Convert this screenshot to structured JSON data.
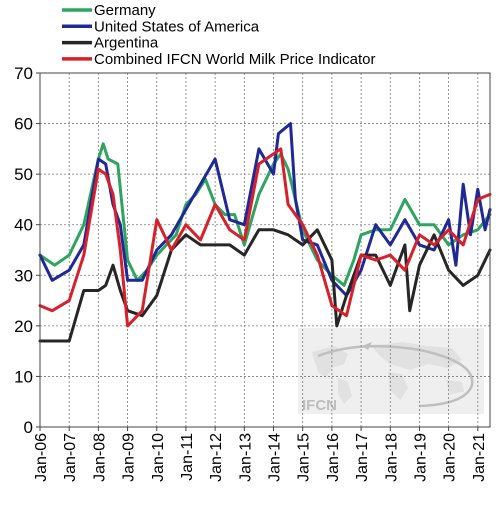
{
  "chart_data": {
    "type": "line",
    "title": "",
    "xlabel": "",
    "ylabel": "",
    "ylim": [
      0,
      70
    ],
    "xlim": [
      "Jan-06",
      "Jun-21"
    ],
    "yticks": [
      0,
      10,
      20,
      30,
      40,
      50,
      60,
      70
    ],
    "xticks": [
      "Jan-06",
      "Jan-07",
      "Jan-08",
      "Jan-09",
      "Jan-10",
      "Jan-11",
      "Jan-12",
      "Jan-13",
      "Jan-14",
      "Jan-15",
      "Jan-16",
      "Jan-17",
      "Jan-18",
      "Jan-19",
      "Jan-20",
      "Jan-21"
    ],
    "grid": true,
    "legend_position": "top-left",
    "watermark": "IFCN",
    "series": [
      {
        "name": "Germany",
        "color": "#2ea55f",
        "x": [
          "Jan-06",
          "Jul-06",
          "Jan-07",
          "Jul-07",
          "Jan-08",
          "Mar-08",
          "May-08",
          "Sep-08",
          "Jan-09",
          "May-09",
          "Sep-09",
          "Jan-10",
          "May-10",
          "Sep-10",
          "Jan-11",
          "May-11",
          "Sep-11",
          "Jan-12",
          "May-12",
          "Sep-12",
          "Jan-13",
          "Jul-13",
          "Jan-14",
          "Apr-14",
          "Jul-14",
          "Jan-15",
          "Jul-15",
          "Jan-16",
          "Jun-16",
          "Oct-16",
          "Jan-17",
          "Jul-17",
          "Jan-18",
          "Jul-18",
          "Jan-19",
          "Jul-19",
          "Jan-20",
          "Jul-20",
          "Jan-21",
          "Jun-21"
        ],
        "y": [
          34,
          32,
          34,
          40,
          53,
          56,
          53,
          52,
          33,
          29,
          31,
          34,
          36,
          38,
          44,
          46,
          49,
          44,
          42,
          42,
          36,
          46,
          52,
          54,
          51,
          39,
          33,
          30,
          28,
          33,
          38,
          39,
          39,
          45,
          40,
          40,
          36,
          38,
          39,
          42
        ]
      },
      {
        "name": "United States of America",
        "color": "#1f2896",
        "x": [
          "Jan-06",
          "Jun-06",
          "Jan-07",
          "Jul-07",
          "Jan-08",
          "Apr-08",
          "Jul-08",
          "Oct-08",
          "Jan-09",
          "Jul-09",
          "Jan-10",
          "Jul-10",
          "Jan-11",
          "Jul-11",
          "Jan-12",
          "Jul-12",
          "Jan-13",
          "Jul-13",
          "Jan-14",
          "Mar-14",
          "Aug-14",
          "Oct-14",
          "Jan-15",
          "Jul-15",
          "Jan-16",
          "Jul-16",
          "Jan-17",
          "Jul-17",
          "Jan-18",
          "Jul-18",
          "Jan-19",
          "Jul-19",
          "Jan-20",
          "Apr-20",
          "Jul-20",
          "Oct-20",
          "Jan-21",
          "Apr-21",
          "Jun-21"
        ],
        "y": [
          34,
          29,
          31,
          36,
          53,
          52,
          44,
          40,
          29,
          29,
          35,
          38,
          43,
          48,
          53,
          41,
          40,
          55,
          50,
          58,
          60,
          45,
          37,
          36,
          29,
          26,
          31,
          40,
          36,
          41,
          36,
          35,
          41,
          32,
          48,
          38,
          47,
          39,
          43
        ]
      },
      {
        "name": "Argentina",
        "color": "#262626",
        "x": [
          "Jan-06",
          "Jun-06",
          "Jan-07",
          "Jul-07",
          "Jan-08",
          "Apr-08",
          "Jul-08",
          "Oct-08",
          "Jan-09",
          "Jul-09",
          "Jan-10",
          "Jul-10",
          "Jan-11",
          "Jul-11",
          "Jan-12",
          "Jul-12",
          "Jan-13",
          "Jul-13",
          "Jan-14",
          "Jul-14",
          "Jan-15",
          "Jul-15",
          "Jan-16",
          "Mar-16",
          "Jul-16",
          "Jan-17",
          "Jul-17",
          "Jan-18",
          "Jul-18",
          "Sep-18",
          "Jan-19",
          "Jul-19",
          "Jan-20",
          "Jul-20",
          "Jan-21",
          "Jun-21"
        ],
        "y": [
          17,
          17,
          17,
          27,
          27,
          28,
          32,
          27,
          23,
          22,
          26,
          35,
          38,
          36,
          36,
          36,
          34,
          39,
          39,
          38,
          36,
          39,
          33,
          20,
          26,
          34,
          34,
          28,
          36,
          23,
          32,
          38,
          31,
          28,
          30,
          35
        ]
      },
      {
        "name": "Combined IFCN World Milk Price Indicator",
        "color": "#d8202a",
        "x": [
          "Jan-06",
          "Jun-06",
          "Jan-07",
          "Jul-07",
          "Jan-08",
          "Apr-08",
          "Jul-08",
          "Oct-08",
          "Jan-09",
          "Jul-09",
          "Jan-10",
          "Jul-10",
          "Jan-11",
          "Jul-11",
          "Jan-12",
          "Jul-12",
          "Jan-13",
          "Jul-13",
          "Jan-14",
          "Apr-14",
          "Jul-14",
          "Jan-15",
          "Jul-15",
          "Jan-16",
          "Jul-16",
          "Jan-17",
          "Jul-17",
          "Jan-18",
          "Jul-18",
          "Jan-19",
          "Jul-19",
          "Jan-20",
          "Jul-20",
          "Jan-21",
          "Jun-21"
        ],
        "y": [
          24,
          23,
          25,
          34,
          51,
          50,
          46,
          35,
          20,
          23,
          41,
          35,
          40,
          37,
          44,
          39,
          37,
          52,
          54,
          55,
          44,
          40,
          34,
          24,
          22,
          34,
          33,
          34,
          31,
          38,
          36,
          39,
          36,
          45,
          46
        ]
      }
    ]
  }
}
